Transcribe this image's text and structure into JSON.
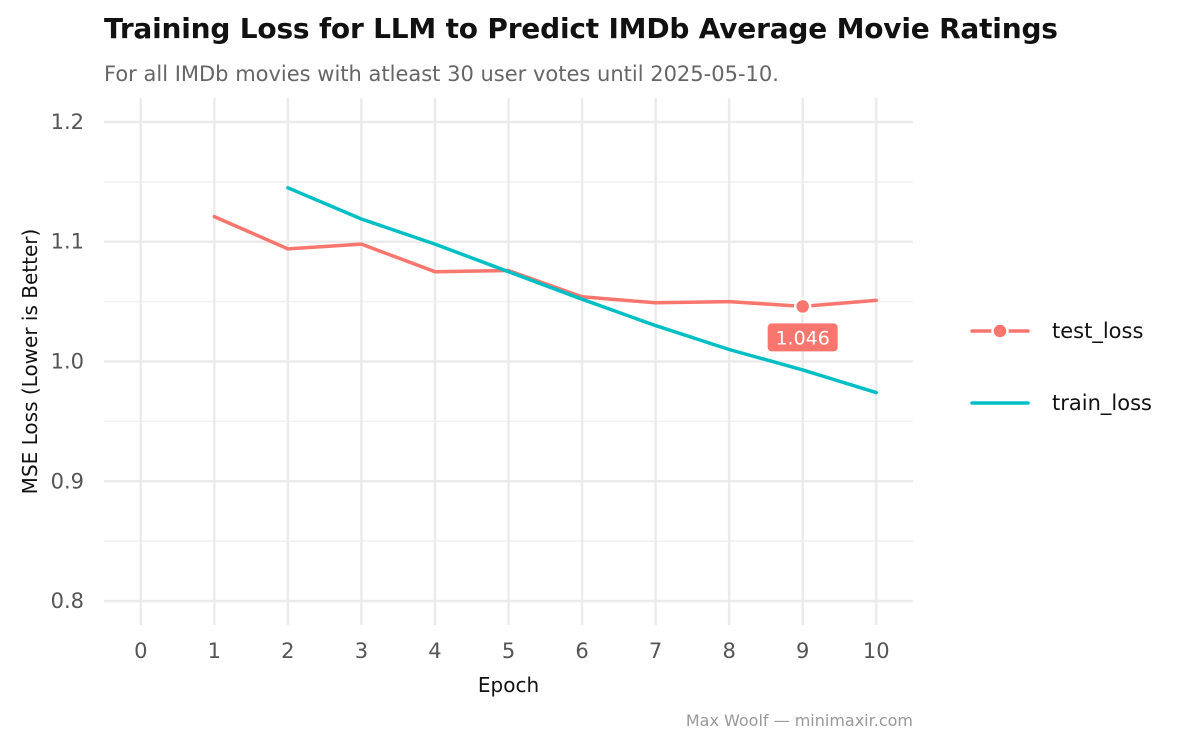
{
  "chart_data": {
    "type": "line",
    "title": "Training Loss for LLM to Predict IMDb Average Movie Ratings",
    "subtitle": "For all IMDb movies with atleast 30 user votes until 2025-05-10.",
    "xlabel": "Epoch",
    "ylabel": "MSE Loss (Lower is Better)",
    "xlim": [
      -0.5,
      10.5
    ],
    "ylim": [
      0.78,
      1.22
    ],
    "x_ticks": [
      0,
      1,
      2,
      3,
      4,
      5,
      6,
      7,
      8,
      9,
      10
    ],
    "y_ticks": [
      0.8,
      0.9,
      1.0,
      1.1,
      1.2
    ],
    "y_tick_labels": [
      "0.8",
      "0.9",
      "1.0",
      "1.1",
      "1.2"
    ],
    "grid": true,
    "legend_position": "right",
    "series": [
      {
        "name": "test_loss",
        "color": "#F8766D",
        "x": [
          1,
          2,
          3,
          4,
          5,
          6,
          7,
          8,
          9,
          10
        ],
        "y": [
          1.121,
          1.094,
          1.098,
          1.075,
          1.076,
          1.054,
          1.049,
          1.05,
          1.046,
          1.051
        ]
      },
      {
        "name": "train_loss",
        "color": "#00BFC4",
        "x": [
          2,
          3,
          4,
          5,
          6,
          7,
          8,
          9,
          10
        ],
        "y": [
          1.145,
          1.119,
          1.098,
          1.075,
          1.052,
          1.03,
          1.01,
          0.993,
          0.974
        ]
      }
    ],
    "annotations": [
      {
        "series": "test_loss",
        "x": 9,
        "y": 1.046,
        "label": "1.046"
      }
    ]
  },
  "caption": "Max Woolf — minimaxir.com"
}
